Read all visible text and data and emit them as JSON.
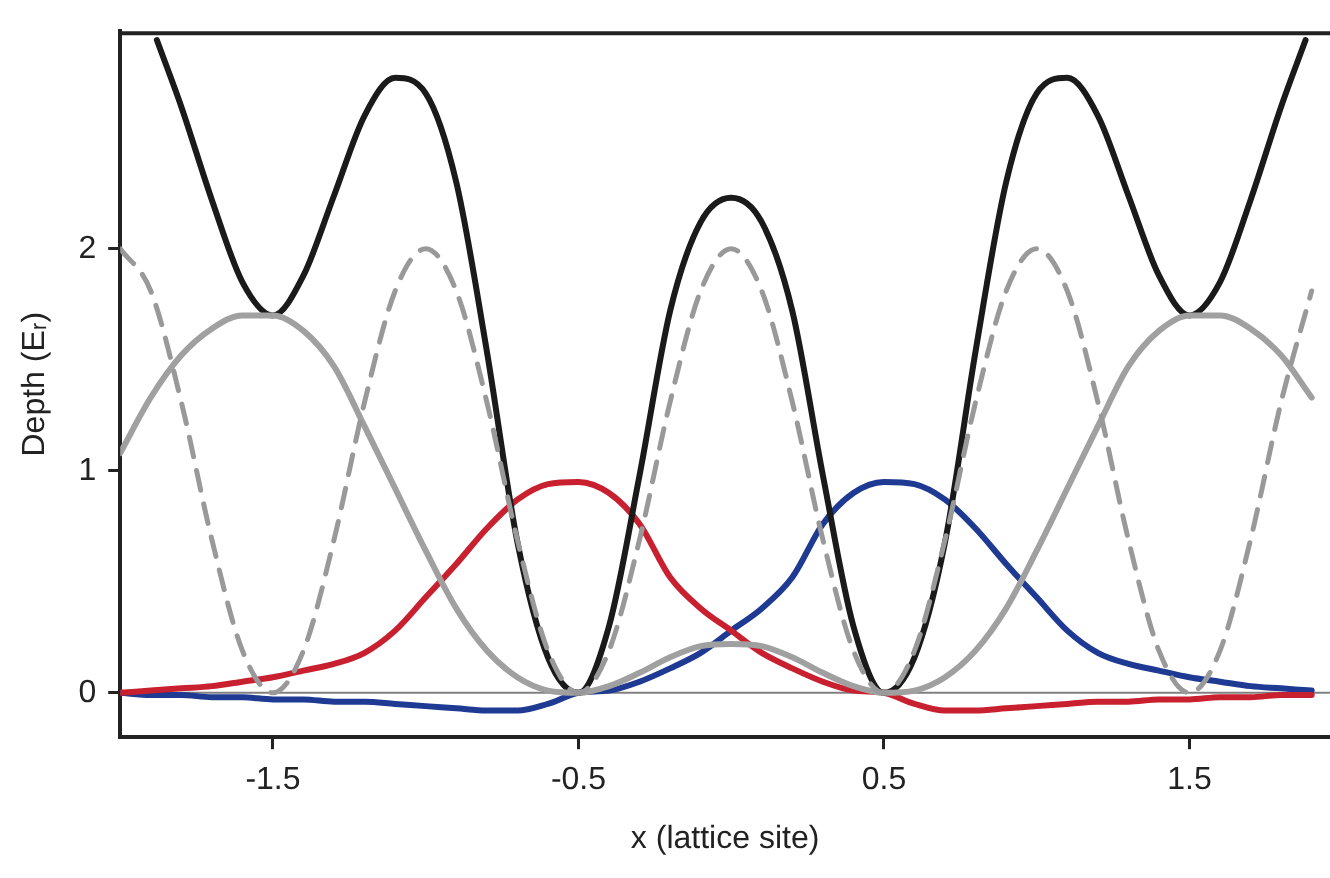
{
  "chart_data": {
    "type": "line",
    "xlabel": "x (lattice site)",
    "ylabel": "Depth (Eᵣ)",
    "x": [
      -2,
      -1.9,
      -1.8,
      -1.7,
      -1.6,
      -1.5,
      -1.4,
      -1.3,
      -1.2,
      -1.1,
      -1,
      -0.9,
      -0.8,
      -0.7,
      -0.6,
      -0.5,
      -0.4,
      -0.3,
      -0.2,
      -0.1,
      0,
      0.1,
      0.2,
      0.3,
      0.4,
      0.5,
      0.6,
      0.7,
      0.8,
      0.9,
      1,
      1.1,
      1.2,
      1.3,
      1.4,
      1.5,
      1.6,
      1.7,
      1.8,
      1.9
    ],
    "xlim": [
      -2,
      1.96
    ],
    "xticks": [
      -1.5,
      -0.5,
      0.5,
      1.5
    ],
    "ylim": [
      -0.2,
      2.98
    ],
    "yticks": [
      0,
      1,
      2
    ],
    "grid": false,
    "legend": false,
    "marker": "none",
    "ref_lines": [
      {
        "axis": "y",
        "value": 0,
        "color": "#808080"
      }
    ],
    "series": [
      {
        "color": "#999999",
        "line_style": "dashed",
        "values": [
          2,
          1.81,
          1.31,
          0.69,
          0.19,
          0,
          0.19,
          0.69,
          1.31,
          1.81,
          2,
          1.81,
          1.31,
          0.69,
          0.19,
          0,
          0.19,
          0.69,
          1.31,
          1.81,
          2,
          1.81,
          1.31,
          0.69,
          0.19,
          0,
          0.19,
          0.69,
          1.31,
          1.81,
          2,
          1.81,
          1.31,
          0.69,
          0.19,
          0,
          0.19,
          0.69,
          1.31,
          1.81
        ]
      },
      {
        "color": "#a0a0a0",
        "line_style": "solid",
        "values": [
          1.08,
          1.33,
          1.52,
          1.64,
          1.7,
          1.7,
          1.63,
          1.47,
          1.2,
          0.92,
          0.64,
          0.38,
          0.19,
          0.07,
          0.01,
          0,
          0.03,
          0.09,
          0.16,
          0.21,
          0.22,
          0.21,
          0.16,
          0.09,
          0.03,
          0,
          0.01,
          0.07,
          0.19,
          0.38,
          0.64,
          0.92,
          1.2,
          1.47,
          1.63,
          1.7,
          1.7,
          1.64,
          1.52,
          1.33
        ]
      },
      {
        "color": "#1a1a1a",
        "line_style": "solid",
        "x": [
          -1.88,
          -1.8,
          -1.7,
          -1.6,
          -1.5,
          -1.4,
          -1.3,
          -1.2,
          -1.1,
          -1,
          -0.9,
          -0.8,
          -0.7,
          -0.6,
          -0.5,
          -0.4,
          -0.3,
          -0.2,
          -0.1,
          0,
          0.1,
          0.2,
          0.3,
          0.4,
          0.5,
          0.6,
          0.7,
          0.8,
          0.9,
          1,
          1.1,
          1.2,
          1.3,
          1.4,
          1.5,
          1.6,
          1.7,
          1.8,
          1.88
        ],
        "values": [
          2.94,
          2.64,
          2.22,
          1.85,
          1.7,
          1.88,
          2.24,
          2.6,
          2.77,
          2.7,
          2.3,
          1.54,
          0.68,
          0.16,
          0,
          0.3,
          0.98,
          1.72,
          2.12,
          2.23,
          2.12,
          1.72,
          0.98,
          0.3,
          0,
          0.16,
          0.68,
          1.54,
          2.3,
          2.7,
          2.77,
          2.6,
          2.24,
          1.88,
          1.7,
          1.85,
          2.22,
          2.64,
          2.94
        ]
      },
      {
        "color": "#c8202f",
        "line_style": "solid",
        "values": [
          0,
          0.01,
          0.02,
          0.03,
          0.05,
          0.07,
          0.1,
          0.13,
          0.18,
          0.28,
          0.43,
          0.58,
          0.74,
          0.87,
          0.94,
          0.95,
          0.9,
          0.76,
          0.52,
          0.38,
          0.28,
          0.18,
          0.11,
          0.05,
          0.01,
          0,
          -0.05,
          -0.08,
          -0.08,
          -0.07,
          -0.06,
          -0.05,
          -0.04,
          -0.04,
          -0.03,
          -0.03,
          -0.02,
          -0.02,
          -0.01,
          -0.01
        ]
      },
      {
        "color": "#1f3a93",
        "line_style": "solid",
        "values": [
          0,
          -0.01,
          -0.01,
          -0.02,
          -0.02,
          -0.03,
          -0.03,
          -0.04,
          -0.04,
          -0.05,
          -0.06,
          -0.07,
          -0.08,
          -0.08,
          -0.05,
          0,
          0.01,
          0.05,
          0.11,
          0.18,
          0.28,
          0.38,
          0.52,
          0.76,
          0.9,
          0.95,
          0.94,
          0.87,
          0.74,
          0.58,
          0.43,
          0.28,
          0.18,
          0.13,
          0.1,
          0.07,
          0.05,
          0.03,
          0.02,
          0.01
        ]
      }
    ]
  }
}
